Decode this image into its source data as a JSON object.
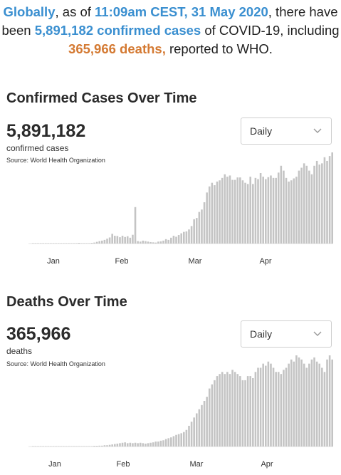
{
  "headline": {
    "prefix": "Globally",
    "part1": ", as of ",
    "datetime": "11:09am CEST, 31 May 2020",
    "part2": ", there have been ",
    "cases_text": "5,891,182 confirmed cases",
    "part3": " of COVID-19, including ",
    "deaths_text": "365,966 deaths,",
    "part4": " reported to WHO.",
    "blue_color": "#3a8fd0",
    "orange_color": "#d47a33"
  },
  "cases": {
    "title": "Confirmed Cases Over Time",
    "total": "5,891,182",
    "label": "confirmed cases",
    "source": "Source:  World Health Organization",
    "dropdown": "Daily"
  },
  "deaths": {
    "title": "Deaths Over Time",
    "total": "365,966",
    "label": "deaths",
    "source": "Source:  World Health Organization",
    "dropdown": "Daily"
  },
  "chart_data": [
    {
      "type": "bar",
      "title": "Confirmed Cases Over Time",
      "x_tick_labels": [
        "Jan",
        "Feb",
        "Mar",
        "Apr"
      ],
      "bar_color": "#c4c4c4",
      "values": [
        0,
        0,
        0,
        0,
        0,
        0,
        0,
        0,
        0,
        0,
        0,
        0,
        0,
        0,
        0,
        0,
        0,
        0,
        1,
        0,
        0,
        0,
        0,
        2,
        4,
        7,
        10,
        12,
        15,
        20,
        25,
        40,
        32,
        31,
        26,
        32,
        27,
        30,
        24,
        36,
        150,
        10,
        8,
        12,
        10,
        8,
        6,
        5,
        4,
        8,
        9,
        12,
        18,
        15,
        24,
        32,
        28,
        35,
        42,
        48,
        50,
        58,
        72,
        100,
        105,
        130,
        140,
        170,
        210,
        235,
        250,
        240,
        255,
        260,
        270,
        285,
        275,
        280,
        262,
        262,
        272,
        272,
        260,
        250,
        245,
        275,
        245,
        270,
        265,
        290,
        275,
        265,
        273,
        280,
        270,
        270,
        292,
        320,
        300,
        270,
        255,
        260,
        268,
        275,
        300,
        312,
        330,
        320,
        300,
        285,
        320,
        340,
        325,
        330,
        355,
        340,
        360,
        375
      ]
    },
    {
      "type": "bar",
      "title": "Deaths Over Time",
      "x_tick_labels": [
        "Jan",
        "Feb",
        "Mar",
        "Apr"
      ],
      "bar_color": "#c4c4c4",
      "values": [
        0,
        0,
        0,
        0,
        0,
        0,
        0,
        0,
        0,
        0,
        0,
        0,
        0,
        0,
        0,
        0,
        0,
        0,
        0,
        0,
        0,
        0,
        0,
        0,
        1,
        1,
        2,
        2,
        3,
        3,
        4,
        5,
        6,
        7,
        8,
        9,
        10,
        8,
        9,
        8,
        9,
        8,
        9,
        8,
        7,
        8,
        9,
        10,
        12,
        12,
        14,
        15,
        18,
        20,
        22,
        25,
        28,
        30,
        32,
        35,
        40,
        50,
        60,
        70,
        80,
        90,
        100,
        110,
        120,
        140,
        150,
        160,
        170,
        175,
        180,
        175,
        180,
        175,
        185,
        180,
        175,
        170,
        160,
        160,
        170,
        170,
        165,
        180,
        190,
        190,
        200,
        195,
        205,
        200,
        190,
        180,
        180,
        175,
        185,
        190,
        200,
        210,
        205,
        220,
        215,
        210,
        200,
        190,
        200,
        210,
        215,
        205,
        200,
        190,
        180,
        210,
        220,
        210
      ]
    }
  ]
}
